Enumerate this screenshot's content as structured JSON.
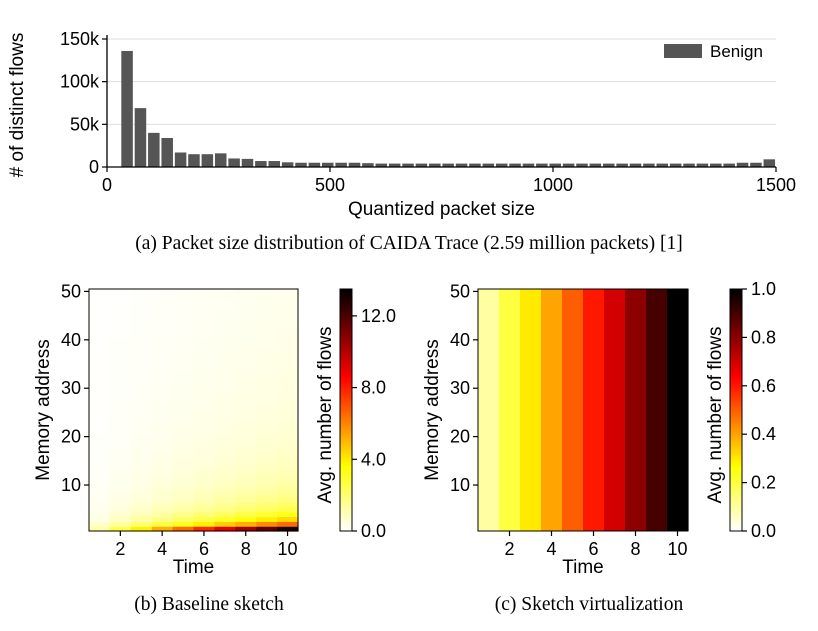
{
  "chart_data": [
    {
      "type": "bar",
      "caption": "(a) Packet size distribution of CAIDA Trace (2.59 million packets) [1]",
      "xlabel": "Quantized packet size",
      "ylabel": "# of distinct flows",
      "xlim": [
        0,
        1500
      ],
      "ylim": [
        0,
        150000
      ],
      "xticks": [
        0,
        500,
        1000,
        1500
      ],
      "xtick_labels": [
        "0",
        "500",
        "1000",
        "1500"
      ],
      "yticks": [
        0,
        50000,
        100000,
        150000
      ],
      "ytick_labels": [
        "0",
        "50k",
        "100k",
        "150k"
      ],
      "grid": "horizontal",
      "legend": {
        "position": "top-right",
        "entries": [
          "Benign"
        ]
      },
      "bar_width": 30,
      "series": [
        {
          "name": "Benign",
          "color": "#555555",
          "x": [
            45,
            75,
            105,
            135,
            165,
            195,
            225,
            255,
            285,
            315,
            345,
            375,
            405,
            435,
            465,
            495,
            525,
            555,
            585,
            615,
            645,
            675,
            705,
            735,
            765,
            795,
            825,
            855,
            885,
            915,
            945,
            975,
            1005,
            1035,
            1065,
            1095,
            1125,
            1155,
            1185,
            1215,
            1245,
            1275,
            1305,
            1335,
            1365,
            1395,
            1425,
            1455,
            1485
          ],
          "values": [
            136000,
            69000,
            40000,
            34000,
            17000,
            15000,
            15000,
            16000,
            10000,
            9500,
            7000,
            7000,
            5500,
            5000,
            5000,
            5000,
            5000,
            5000,
            4500,
            4000,
            4000,
            4000,
            4000,
            4000,
            4000,
            4000,
            4000,
            4000,
            4000,
            4000,
            4000,
            4000,
            4000,
            4000,
            4000,
            4000,
            4000,
            4000,
            4000,
            4000,
            4000,
            4000,
            4000,
            4000,
            4000,
            4000,
            5000,
            5000,
            9000
          ]
        }
      ]
    },
    {
      "type": "heatmap",
      "caption": "(b) Baseline sketch",
      "xlabel": "Time",
      "ylabel": "Memory address",
      "colorbar_label": "Avg. number of flows",
      "colormap": "hot_r",
      "xlim": [
        0.5,
        10.5
      ],
      "ylim": [
        0.5,
        50.5
      ],
      "xticks": [
        2,
        4,
        6,
        8,
        10
      ],
      "yticks": [
        10,
        20,
        30,
        40,
        50
      ],
      "vmin": 0.0,
      "vmax": 13.5,
      "colorbar_ticks": [
        0.0,
        4.0,
        8.0,
        12.0
      ],
      "colorbar_tick_labels": [
        "0.0",
        "4.0",
        "8.0",
        "12.0"
      ],
      "time": [
        1,
        2,
        3,
        4,
        5,
        6,
        7,
        8,
        9,
        10
      ],
      "address": [
        1,
        2,
        3,
        4,
        5,
        6,
        7,
        8,
        9,
        10,
        11,
        12,
        13,
        14,
        15,
        16,
        17,
        18,
        19,
        20,
        21,
        22,
        23,
        24,
        25,
        26,
        27,
        28,
        29,
        30,
        31,
        32,
        33,
        34,
        35,
        36,
        37,
        38,
        39,
        40,
        41,
        42,
        43,
        44,
        45,
        46,
        47,
        48,
        49,
        50
      ],
      "note_values": "values[address_index][time_index], estimated from colour",
      "values": [
        [
          1.3,
          2.6,
          3.9,
          5.2,
          6.5,
          7.8,
          9.1,
          10.4,
          11.7,
          13.0
        ],
        [
          0.7,
          1.3,
          2.0,
          2.6,
          3.3,
          3.9,
          4.6,
          5.2,
          5.9,
          6.5
        ],
        [
          0.43,
          0.87,
          1.3,
          1.73,
          2.17,
          2.6,
          3.03,
          3.47,
          3.9,
          4.33
        ],
        [
          0.33,
          0.65,
          0.98,
          1.3,
          1.63,
          1.95,
          2.28,
          2.6,
          2.93,
          3.25
        ],
        [
          0.26,
          0.52,
          0.78,
          1.04,
          1.3,
          1.56,
          1.82,
          2.08,
          2.34,
          2.6
        ],
        [
          0.22,
          0.43,
          0.65,
          0.87,
          1.08,
          1.3,
          1.52,
          1.73,
          1.95,
          2.17
        ],
        [
          0.19,
          0.37,
          0.56,
          0.74,
          0.93,
          1.11,
          1.3,
          1.49,
          1.67,
          1.86
        ],
        [
          0.16,
          0.33,
          0.49,
          0.65,
          0.81,
          0.98,
          1.14,
          1.3,
          1.46,
          1.63
        ],
        [
          0.14,
          0.29,
          0.43,
          0.58,
          0.72,
          0.87,
          1.01,
          1.16,
          1.3,
          1.44
        ],
        [
          0.13,
          0.26,
          0.39,
          0.52,
          0.65,
          0.78,
          0.91,
          1.04,
          1.17,
          1.3
        ],
        [
          0.12,
          0.24,
          0.35,
          0.47,
          0.59,
          0.71,
          0.83,
          0.95,
          1.06,
          1.18
        ],
        [
          0.11,
          0.22,
          0.33,
          0.43,
          0.54,
          0.65,
          0.76,
          0.87,
          0.98,
          1.08
        ],
        [
          0.1,
          0.2,
          0.3,
          0.4,
          0.5,
          0.6,
          0.7,
          0.8,
          0.9,
          1.0
        ],
        [
          0.09,
          0.19,
          0.28,
          0.37,
          0.46,
          0.56,
          0.65,
          0.74,
          0.84,
          0.93
        ],
        [
          0.09,
          0.17,
          0.26,
          0.35,
          0.43,
          0.52,
          0.61,
          0.69,
          0.78,
          0.87
        ],
        [
          0.08,
          0.16,
          0.24,
          0.33,
          0.41,
          0.49,
          0.57,
          0.65,
          0.73,
          0.81
        ],
        [
          0.08,
          0.15,
          0.23,
          0.31,
          0.38,
          0.46,
          0.54,
          0.61,
          0.69,
          0.76
        ],
        [
          0.07,
          0.14,
          0.22,
          0.29,
          0.36,
          0.43,
          0.51,
          0.58,
          0.65,
          0.72
        ],
        [
          0.07,
          0.14,
          0.21,
          0.27,
          0.34,
          0.41,
          0.48,
          0.55,
          0.62,
          0.68
        ],
        [
          0.07,
          0.13,
          0.2,
          0.26,
          0.33,
          0.39,
          0.46,
          0.52,
          0.59,
          0.65
        ],
        [
          0.06,
          0.12,
          0.19,
          0.25,
          0.31,
          0.37,
          0.43,
          0.5,
          0.56,
          0.62
        ],
        [
          0.06,
          0.12,
          0.18,
          0.24,
          0.3,
          0.35,
          0.41,
          0.47,
          0.53,
          0.59
        ],
        [
          0.06,
          0.11,
          0.17,
          0.23,
          0.28,
          0.34,
          0.4,
          0.45,
          0.51,
          0.57
        ],
        [
          0.05,
          0.11,
          0.16,
          0.22,
          0.27,
          0.33,
          0.38,
          0.43,
          0.49,
          0.54
        ],
        [
          0.05,
          0.1,
          0.16,
          0.21,
          0.26,
          0.31,
          0.36,
          0.42,
          0.47,
          0.52
        ],
        [
          0.05,
          0.1,
          0.15,
          0.2,
          0.25,
          0.3,
          0.35,
          0.4,
          0.45,
          0.5
        ],
        [
          0.05,
          0.1,
          0.14,
          0.19,
          0.24,
          0.29,
          0.34,
          0.39,
          0.43,
          0.48
        ],
        [
          0.05,
          0.09,
          0.14,
          0.19,
          0.23,
          0.28,
          0.33,
          0.37,
          0.42,
          0.46
        ],
        [
          0.04,
          0.09,
          0.13,
          0.18,
          0.22,
          0.27,
          0.31,
          0.36,
          0.4,
          0.45
        ],
        [
          0.04,
          0.09,
          0.13,
          0.17,
          0.22,
          0.26,
          0.3,
          0.35,
          0.39,
          0.43
        ],
        [
          0.04,
          0.08,
          0.13,
          0.17,
          0.21,
          0.25,
          0.29,
          0.34,
          0.38,
          0.42
        ],
        [
          0.04,
          0.08,
          0.12,
          0.16,
          0.2,
          0.24,
          0.28,
          0.33,
          0.37,
          0.41
        ],
        [
          0.04,
          0.08,
          0.12,
          0.16,
          0.2,
          0.24,
          0.28,
          0.32,
          0.35,
          0.39
        ],
        [
          0.04,
          0.08,
          0.11,
          0.15,
          0.19,
          0.23,
          0.27,
          0.31,
          0.34,
          0.38
        ],
        [
          0.04,
          0.07,
          0.11,
          0.15,
          0.19,
          0.22,
          0.26,
          0.3,
          0.33,
          0.37
        ],
        [
          0.04,
          0.07,
          0.11,
          0.14,
          0.18,
          0.22,
          0.25,
          0.29,
          0.33,
          0.36
        ],
        [
          0.04,
          0.07,
          0.11,
          0.14,
          0.18,
          0.21,
          0.25,
          0.28,
          0.32,
          0.35
        ],
        [
          0.03,
          0.07,
          0.1,
          0.14,
          0.17,
          0.21,
          0.24,
          0.27,
          0.31,
          0.34
        ],
        [
          0.03,
          0.07,
          0.1,
          0.13,
          0.17,
          0.2,
          0.23,
          0.27,
          0.3,
          0.33
        ],
        [
          0.03,
          0.07,
          0.1,
          0.13,
          0.16,
          0.2,
          0.23,
          0.26,
          0.29,
          0.33
        ],
        [
          0.03,
          0.06,
          0.1,
          0.13,
          0.16,
          0.19,
          0.22,
          0.25,
          0.29,
          0.32
        ],
        [
          0.03,
          0.06,
          0.09,
          0.12,
          0.15,
          0.19,
          0.22,
          0.25,
          0.28,
          0.31
        ],
        [
          0.03,
          0.06,
          0.09,
          0.12,
          0.15,
          0.18,
          0.21,
          0.24,
          0.27,
          0.3
        ],
        [
          0.03,
          0.06,
          0.09,
          0.12,
          0.15,
          0.18,
          0.21,
          0.24,
          0.27,
          0.3
        ],
        [
          0.03,
          0.06,
          0.09,
          0.12,
          0.14,
          0.17,
          0.2,
          0.23,
          0.26,
          0.29
        ],
        [
          0.03,
          0.06,
          0.08,
          0.11,
          0.14,
          0.17,
          0.2,
          0.23,
          0.25,
          0.28
        ],
        [
          0.03,
          0.06,
          0.08,
          0.11,
          0.14,
          0.17,
          0.19,
          0.22,
          0.25,
          0.28
        ],
        [
          0.03,
          0.05,
          0.08,
          0.11,
          0.14,
          0.16,
          0.19,
          0.22,
          0.24,
          0.27
        ],
        [
          0.03,
          0.05,
          0.08,
          0.11,
          0.13,
          0.16,
          0.19,
          0.21,
          0.24,
          0.27
        ],
        [
          0.03,
          0.05,
          0.08,
          0.1,
          0.13,
          0.16,
          0.18,
          0.21,
          0.23,
          0.26
        ]
      ]
    },
    {
      "type": "heatmap",
      "caption": "(c) Sketch virtualization",
      "xlabel": "Time",
      "ylabel": "Memory address",
      "colorbar_label": "Avg. number of flows",
      "colormap": "hot_r",
      "xlim": [
        0.5,
        10.5
      ],
      "ylim": [
        0.5,
        50.5
      ],
      "xticks": [
        2,
        4,
        6,
        8,
        10
      ],
      "yticks": [
        10,
        20,
        30,
        40,
        50
      ],
      "vmin": 0.0,
      "vmax": 1.0,
      "colorbar_ticks": [
        0.0,
        0.2,
        0.4,
        0.6,
        0.8,
        1.0
      ],
      "colorbar_tick_labels": [
        "0.0",
        "0.2",
        "0.4",
        "0.6",
        "0.8",
        "1.0"
      ],
      "time": [
        1,
        2,
        3,
        4,
        5,
        6,
        7,
        8,
        9,
        10
      ],
      "note_values": "value per time step, uniform across all 50 memory addresses",
      "values": [
        0.1,
        0.2,
        0.3,
        0.4,
        0.5,
        0.6,
        0.7,
        0.8,
        0.9,
        1.0
      ]
    }
  ]
}
